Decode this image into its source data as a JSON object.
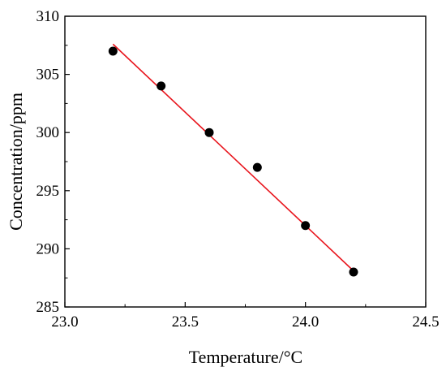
{
  "chart_data": {
    "type": "scatter",
    "title": "",
    "xlabel": "Temperature/°C",
    "ylabel": "Concentration/ppm",
    "xlim": [
      23.0,
      24.5
    ],
    "ylim": [
      285,
      310
    ],
    "xticks": [
      "23.0",
      "23.5",
      "24.0",
      "24.5"
    ],
    "yticks": [
      "285",
      "290",
      "295",
      "300",
      "305",
      "310"
    ],
    "grid": false,
    "legend": "none",
    "series": [
      {
        "kind": "points",
        "color": "#000000",
        "points": [
          {
            "x": 23.2,
            "y": 307
          },
          {
            "x": 23.4,
            "y": 304
          },
          {
            "x": 23.6,
            "y": 300
          },
          {
            "x": 23.8,
            "y": 297
          },
          {
            "x": 24.0,
            "y": 292
          },
          {
            "x": 24.2,
            "y": 288
          }
        ]
      },
      {
        "kind": "fit-line",
        "color": "#e8141c",
        "points": [
          {
            "x": 23.2,
            "y": 307.6
          },
          {
            "x": 24.2,
            "y": 288.1
          }
        ]
      }
    ]
  }
}
